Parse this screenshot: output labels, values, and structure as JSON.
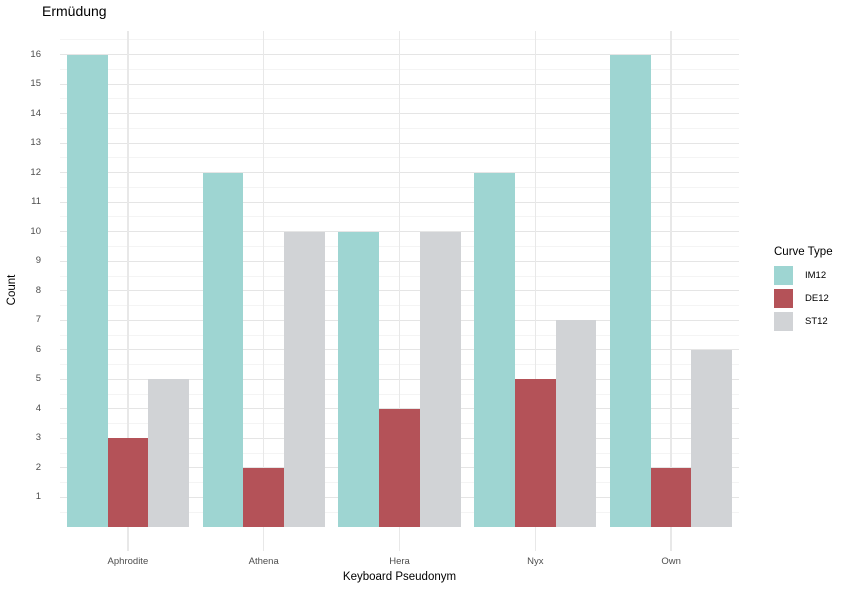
{
  "title": "Ermüdung",
  "chart_data": {
    "type": "bar",
    "title": "Ermüdung",
    "xlabel": "Keyboard Pseudonym",
    "ylabel": "Count",
    "categories": [
      "Aphrodite",
      "Athena",
      "Hera",
      "Nyx",
      "Own"
    ],
    "series": [
      {
        "name": "IM12",
        "color": "#9ed5d2",
        "values": [
          16,
          12,
          10,
          12,
          16
        ]
      },
      {
        "name": "DE12",
        "color": "#b45258",
        "values": [
          3,
          2,
          4,
          5,
          2
        ]
      },
      {
        "name": "ST12",
        "color": "#d1d3d6",
        "values": [
          5,
          10,
          10,
          7,
          6
        ]
      }
    ],
    "yticks": [
      1,
      2,
      3,
      4,
      5,
      6,
      7,
      8,
      9,
      10,
      11,
      12,
      13,
      14,
      15,
      16
    ],
    "ylim": [
      0,
      16.8
    ],
    "bar_group_width": 0.9,
    "legend": {
      "title": "Curve Type",
      "position": "right"
    },
    "grid": {
      "horizontal_major": true,
      "horizontal_minor": true,
      "vertical_major_at_categories": true,
      "major_color": "#e5e5e5",
      "minor_color": "#f4f4f4"
    },
    "background": "#ffffff",
    "tick_label_color": "#4d4d4d",
    "text_color": "#000000"
  }
}
